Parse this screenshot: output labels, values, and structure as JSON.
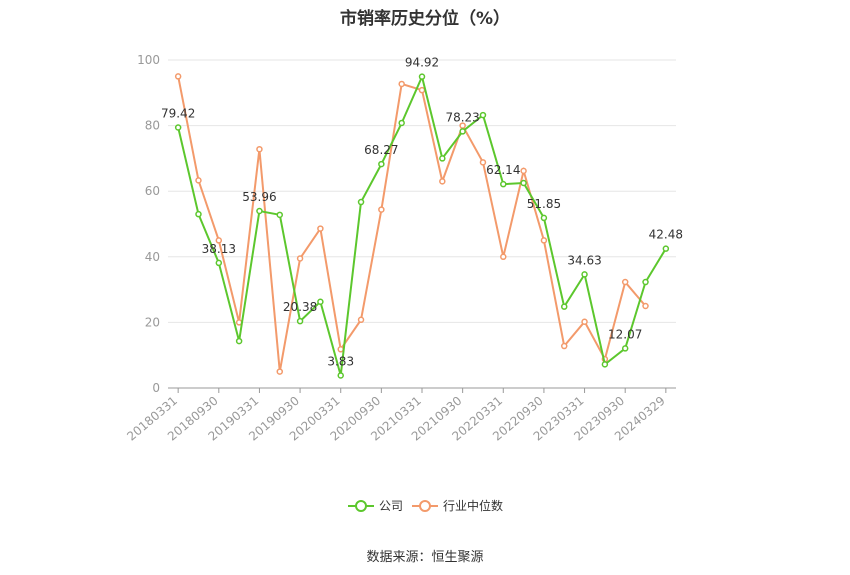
{
  "title": "市销率历史分位（%）",
  "source": "数据来源：恒生聚源",
  "chart_data": {
    "type": "line",
    "ylim": [
      0,
      100
    ],
    "yticks": [
      0,
      20,
      40,
      60,
      80,
      100
    ],
    "grid": true,
    "legend_position": "bottom-center",
    "x": [
      "20180331",
      "20180630",
      "20180930",
      "20181231",
      "20190331",
      "20190630",
      "20190930",
      "20191231",
      "20200331",
      "20200630",
      "20200930",
      "20201231",
      "20210331",
      "20210630",
      "20210930",
      "20211231",
      "20220331",
      "20220630",
      "20220930",
      "20221231",
      "20230331",
      "20230630",
      "20230930",
      "20231231",
      "20240329"
    ],
    "xtick_labels": [
      "20180331",
      "20180930",
      "20190331",
      "20190930",
      "20200331",
      "20200930",
      "20210331",
      "20210930",
      "20220331",
      "20220930",
      "20230331",
      "20230930",
      "20240329"
    ],
    "series": [
      {
        "name": "公司",
        "color": "#5cc72d",
        "values": [
          79.42,
          53.0,
          38.13,
          14.3,
          53.96,
          52.8,
          20.38,
          26.3,
          3.83,
          56.7,
          68.27,
          80.8,
          94.92,
          70.0,
          78.23,
          83.2,
          62.14,
          62.5,
          51.85,
          24.8,
          34.63,
          7.2,
          12.07,
          32.3,
          42.48
        ],
        "labels": {
          "0": "79.42",
          "2": "38.13",
          "4": "53.96",
          "6": "20.38",
          "8": "3.83",
          "10": "68.27",
          "12": "94.92",
          "14": "78.23",
          "16": "62.14",
          "18": "51.85",
          "20": "34.63",
          "22": "12.07",
          "24": "42.48"
        }
      },
      {
        "name": "行业中位数",
        "color": "#f39a6b",
        "values": [
          95.0,
          63.3,
          45.0,
          20.0,
          72.8,
          5.0,
          39.5,
          48.6,
          11.8,
          20.8,
          54.4,
          92.7,
          90.8,
          63.0,
          80.0,
          68.8,
          40.0,
          66.2,
          45.0,
          12.8,
          20.2,
          8.8,
          32.3,
          25.0,
          null
        ]
      }
    ]
  }
}
